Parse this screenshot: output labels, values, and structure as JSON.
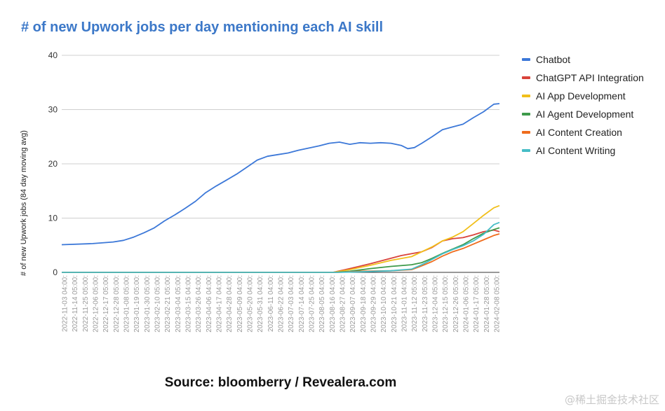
{
  "chart_data": {
    "type": "line",
    "title": "# of new Upwork jobs per day mentioning each AI skill",
    "ylabel": "# of new Upwork jobs (84 day moving avg)",
    "xlabel": "",
    "ylim": [
      0,
      40
    ],
    "yticks": [
      0,
      10,
      20,
      30,
      40
    ],
    "grid": true,
    "legend_position": "right",
    "x_tick_labels": [
      "2022-11-03 04:00:",
      "2022-11-14 05:00:",
      "2022-11-25 05:00:",
      "2022-12-06 05:00:",
      "2022-12-17 05:00:",
      "2022-12-28 05:00:",
      "2023-01-08 05:00:",
      "2023-01-19 05:00:",
      "2023-01-30 05:00:",
      "2023-02-10 05:00:",
      "2023-02-21 05:00:",
      "2023-03-04 05:00:",
      "2023-03-15 04:00:",
      "2023-03-26 04:00:",
      "2023-04-06 04:00:",
      "2023-04-17 04:00:",
      "2023-04-28 04:00:",
      "2023-05-09 04:00:",
      "2023-05-20 04:00:",
      "2023-05-31 04:00:",
      "2023-06-11 04:00:",
      "2023-06-22 04:00:",
      "2023-07-03 04:00:",
      "2023-07-14 04:00:",
      "2023-07-25 04:00:",
      "2023-08-05 04:00:",
      "2023-08-16 04:00:",
      "2023-08-27 04:00:",
      "2023-09-07 04:00:",
      "2023-09-18 04:00:",
      "2023-09-29 04:00:",
      "2023-10-10 04:00:",
      "2023-10-21 04:00:",
      "2023-11-01 04:00:",
      "2023-11-12 05:00:",
      "2023-11-23 05:00:",
      "2023-12-04 05:00:",
      "2023-12-15 05:00:",
      "2023-12-26 05:00:",
      "2024-01-06 05:00:",
      "2024-01-17 05:00:",
      "2024-01-28 05:00:",
      "2024-02-08 05:00:"
    ],
    "x_start": "2022-11-03",
    "x_end": "2024-02-14",
    "series": [
      {
        "name": "Chatbot",
        "color": "#3c78d8",
        "points": [
          [
            "2022-11-03",
            5.1
          ],
          [
            "2022-12-06",
            5.3
          ],
          [
            "2022-12-28",
            5.6
          ],
          [
            "2023-01-08",
            5.9
          ],
          [
            "2023-01-19",
            6.5
          ],
          [
            "2023-01-30",
            7.3
          ],
          [
            "2023-02-10",
            8.2
          ],
          [
            "2023-02-21",
            9.5
          ],
          [
            "2023-03-04",
            10.6
          ],
          [
            "2023-03-15",
            11.8
          ],
          [
            "2023-03-26",
            13.1
          ],
          [
            "2023-04-06",
            14.7
          ],
          [
            "2023-04-17",
            15.9
          ],
          [
            "2023-04-28",
            17.0
          ],
          [
            "2023-05-09",
            18.1
          ],
          [
            "2023-05-20",
            19.4
          ],
          [
            "2023-05-31",
            20.7
          ],
          [
            "2023-06-11",
            21.4
          ],
          [
            "2023-06-22",
            21.7
          ],
          [
            "2023-07-03",
            22.0
          ],
          [
            "2023-07-14",
            22.5
          ],
          [
            "2023-07-25",
            22.9
          ],
          [
            "2023-08-05",
            23.3
          ],
          [
            "2023-08-16",
            23.8
          ],
          [
            "2023-08-27",
            24.0
          ],
          [
            "2023-09-07",
            23.6
          ],
          [
            "2023-09-18",
            23.9
          ],
          [
            "2023-09-29",
            23.8
          ],
          [
            "2023-10-10",
            23.9
          ],
          [
            "2023-10-21",
            23.8
          ],
          [
            "2023-11-01",
            23.4
          ],
          [
            "2023-11-08",
            22.8
          ],
          [
            "2023-11-15",
            23.0
          ],
          [
            "2023-11-23",
            23.8
          ],
          [
            "2023-12-04",
            25.0
          ],
          [
            "2023-12-15",
            26.3
          ],
          [
            "2023-12-26",
            26.8
          ],
          [
            "2024-01-06",
            27.3
          ],
          [
            "2024-01-17",
            28.5
          ],
          [
            "2024-01-28",
            29.6
          ],
          [
            "2024-02-08",
            31.0
          ],
          [
            "2024-02-14",
            31.1
          ]
        ]
      },
      {
        "name": "ChatGPT API Integration",
        "color": "#d9433b",
        "points": [
          [
            "2022-11-03",
            0
          ],
          [
            "2023-08-20",
            0
          ],
          [
            "2023-09-07",
            0.7
          ],
          [
            "2023-09-29",
            1.6
          ],
          [
            "2023-10-21",
            2.6
          ],
          [
            "2023-11-01",
            3.1
          ],
          [
            "2023-11-23",
            3.8
          ],
          [
            "2023-12-04",
            4.6
          ],
          [
            "2023-12-15",
            5.8
          ],
          [
            "2023-12-26",
            6.2
          ],
          [
            "2024-01-06",
            6.4
          ],
          [
            "2024-01-17",
            6.9
          ],
          [
            "2024-01-28",
            7.5
          ],
          [
            "2024-02-08",
            7.8
          ],
          [
            "2024-02-14",
            7.5
          ]
        ]
      },
      {
        "name": "AI App Development",
        "color": "#f1bf1a",
        "points": [
          [
            "2022-11-03",
            0
          ],
          [
            "2023-08-20",
            0
          ],
          [
            "2023-09-07",
            0.5
          ],
          [
            "2023-09-29",
            1.3
          ],
          [
            "2023-10-21",
            2.2
          ],
          [
            "2023-11-12",
            2.9
          ],
          [
            "2023-11-23",
            3.8
          ],
          [
            "2023-12-04",
            4.7
          ],
          [
            "2023-12-15",
            5.8
          ],
          [
            "2023-12-26",
            6.5
          ],
          [
            "2024-01-06",
            7.5
          ],
          [
            "2024-01-17",
            9.0
          ],
          [
            "2024-01-28",
            10.5
          ],
          [
            "2024-02-08",
            11.9
          ],
          [
            "2024-02-14",
            12.3
          ]
        ]
      },
      {
        "name": "AI Agent Development",
        "color": "#3e9a4a",
        "points": [
          [
            "2022-11-03",
            0
          ],
          [
            "2023-08-22",
            0
          ],
          [
            "2023-09-07",
            0.2
          ],
          [
            "2023-09-29",
            0.7
          ],
          [
            "2023-10-21",
            1.1
          ],
          [
            "2023-11-12",
            1.4
          ],
          [
            "2023-11-23",
            1.8
          ],
          [
            "2023-12-04",
            2.6
          ],
          [
            "2023-12-15",
            3.5
          ],
          [
            "2023-12-26",
            4.3
          ],
          [
            "2024-01-06",
            5.1
          ],
          [
            "2024-01-17",
            6.2
          ],
          [
            "2024-01-28",
            7.2
          ],
          [
            "2024-02-08",
            7.9
          ],
          [
            "2024-02-14",
            8.2
          ]
        ]
      },
      {
        "name": "AI Content Creation",
        "color": "#ef6c1d",
        "points": [
          [
            "2022-11-03",
            0
          ],
          [
            "2023-08-25",
            0
          ],
          [
            "2023-09-18",
            0.2
          ],
          [
            "2023-10-21",
            0.3
          ],
          [
            "2023-11-12",
            0.5
          ],
          [
            "2023-11-23",
            1.2
          ],
          [
            "2023-12-04",
            2.0
          ],
          [
            "2023-12-15",
            3.0
          ],
          [
            "2023-12-26",
            3.8
          ],
          [
            "2024-01-06",
            4.4
          ],
          [
            "2024-01-17",
            5.2
          ],
          [
            "2024-01-28",
            6.0
          ],
          [
            "2024-02-08",
            6.8
          ],
          [
            "2024-02-14",
            7.1
          ]
        ]
      },
      {
        "name": "AI Content Writing",
        "color": "#46bdc6",
        "points": [
          [
            "2022-11-03",
            0
          ],
          [
            "2023-08-25",
            0
          ],
          [
            "2023-09-18",
            0.1
          ],
          [
            "2023-10-21",
            0.3
          ],
          [
            "2023-11-12",
            0.6
          ],
          [
            "2023-11-23",
            1.4
          ],
          [
            "2023-12-04",
            2.4
          ],
          [
            "2023-12-15",
            3.4
          ],
          [
            "2023-12-26",
            4.2
          ],
          [
            "2024-01-06",
            4.9
          ],
          [
            "2024-01-17",
            5.8
          ],
          [
            "2024-01-28",
            7.0
          ],
          [
            "2024-02-08",
            8.8
          ],
          [
            "2024-02-14",
            9.2
          ]
        ]
      }
    ]
  },
  "source_text": "Source: bloomberry / Revealera.com",
  "watermark_text": "@稀土掘金技术社区"
}
